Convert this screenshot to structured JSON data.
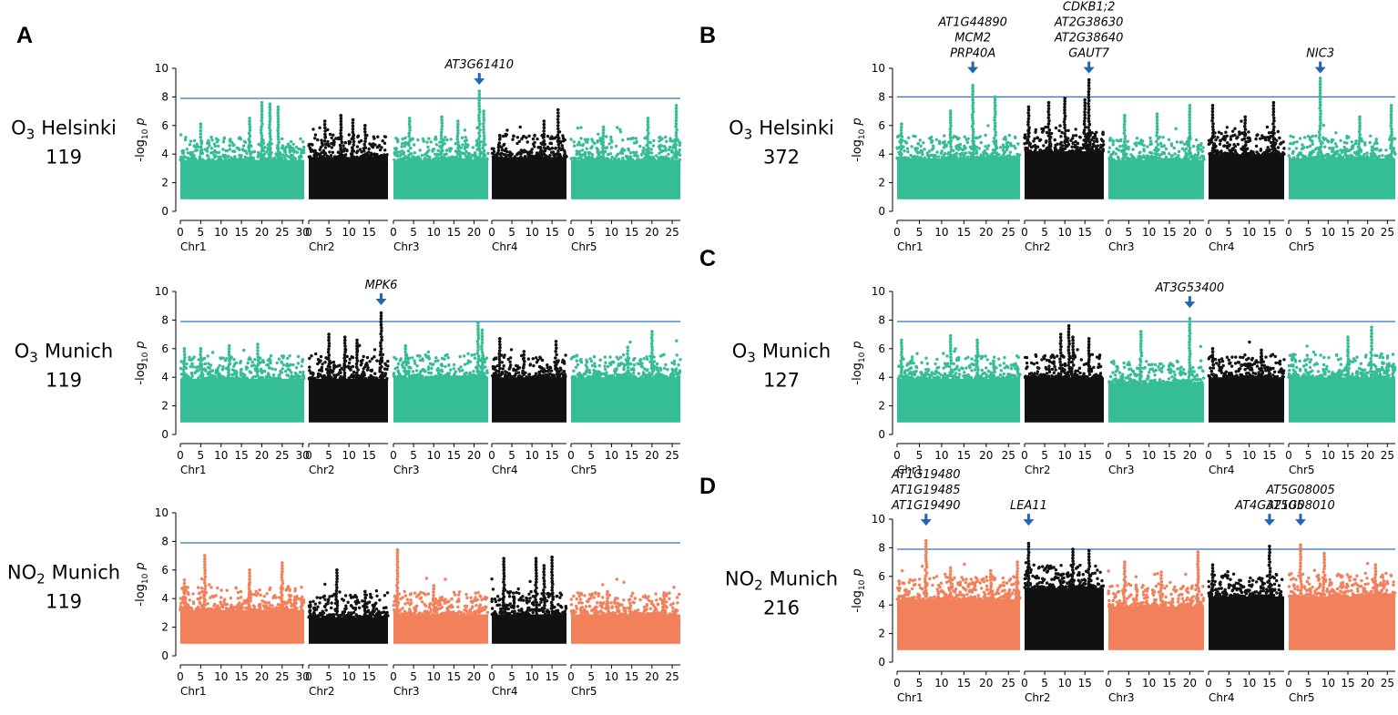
{
  "colors": {
    "teal": "#35bd95",
    "salmon": "#f2805b",
    "black": "#111111",
    "threshold": "#2e73c2",
    "arrow": "#2166b0"
  },
  "chart_data": [
    {
      "panel_letter": "A",
      "type": "scatter",
      "pollutant": "O",
      "pollutant_sub": "3",
      "site": "Helsinki",
      "n": "119",
      "ylabel": "-log",
      "ylabel_sub": "10",
      "ylabel_p": "p",
      "ylim": [
        0,
        10
      ],
      "yticks": [
        "0",
        "2",
        "4",
        "6",
        "8",
        "10"
      ],
      "threshold": 7.9,
      "palette": "teal",
      "chromosomes": [
        {
          "name": "Chr1",
          "length_mb": 30.4,
          "ticks": [
            "0",
            "5",
            "10",
            "15",
            "20",
            "25",
            "30"
          ],
          "base": 4.0,
          "peaks": [
            [
              5,
              6.1
            ],
            [
              17,
              6.5
            ],
            [
              20,
              7.6
            ],
            [
              22,
              7.5
            ],
            [
              24,
              7.3
            ]
          ]
        },
        {
          "name": "Chr2",
          "length_mb": 19.7,
          "ticks": [
            "0",
            "5",
            "10",
            "15"
          ],
          "base": 4.2,
          "peaks": [
            [
              4,
              6.3
            ],
            [
              8,
              6.7
            ],
            [
              11,
              6.4
            ],
            [
              14,
              6.0
            ]
          ]
        },
        {
          "name": "Chr3",
          "length_mb": 23.5,
          "ticks": [
            "0",
            "5",
            "10",
            "15",
            "20"
          ],
          "base": 4.0,
          "peaks": [
            [
              4,
              6.5
            ],
            [
              12,
              6.6
            ],
            [
              16,
              6.3
            ],
            [
              21.3,
              8.4
            ],
            [
              22.4,
              7.0
            ]
          ]
        },
        {
          "name": "Chr4",
          "length_mb": 18.6,
          "ticks": [
            "0",
            "5",
            "10",
            "15"
          ],
          "base": 4.2,
          "peaks": [
            [
              2,
              5.3
            ],
            [
              13,
              6.3
            ],
            [
              16.5,
              7.1
            ]
          ]
        },
        {
          "name": "Chr5",
          "length_mb": 27.0,
          "ticks": [
            "0",
            "5",
            "10",
            "15",
            "20",
            "25"
          ],
          "base": 4.0,
          "peaks": [
            [
              8,
              5.9
            ],
            [
              19,
              6.5
            ],
            [
              26,
              7.4
            ]
          ]
        }
      ],
      "annotations": [
        {
          "chr": "Chr3",
          "pos": 21.3,
          "labels": [
            "AT3G61410"
          ],
          "arrow_y": 9.1
        }
      ]
    },
    {
      "panel_letter": "",
      "type": "scatter",
      "pollutant": "O",
      "pollutant_sub": "3",
      "site": "Munich",
      "n": "119",
      "ylabel": "-log",
      "ylabel_sub": "10",
      "ylabel_p": "p",
      "ylim": [
        0,
        10
      ],
      "yticks": [
        "0",
        "2",
        "4",
        "6",
        "8",
        "10"
      ],
      "threshold": 7.9,
      "palette": "teal",
      "chromosomes": [
        {
          "name": "Chr1",
          "length_mb": 30.4,
          "ticks": [
            "0",
            "5",
            "10",
            "15",
            "20",
            "25",
            "30"
          ],
          "base": 4.3,
          "peaks": [
            [
              1,
              6.0
            ],
            [
              5,
              6.0
            ],
            [
              12,
              6.2
            ],
            [
              19,
              6.3
            ]
          ]
        },
        {
          "name": "Chr2",
          "length_mb": 19.7,
          "ticks": [
            "0",
            "5",
            "10",
            "15"
          ],
          "base": 4.3,
          "peaks": [
            [
              5,
              7.0
            ],
            [
              9,
              6.8
            ],
            [
              12,
              6.6
            ],
            [
              18,
              8.5
            ]
          ]
        },
        {
          "name": "Chr3",
          "length_mb": 23.5,
          "ticks": [
            "0",
            "5",
            "10",
            "15",
            "20"
          ],
          "base": 4.4,
          "peaks": [
            [
              3,
              6.2
            ],
            [
              21,
              7.8
            ],
            [
              22,
              7.3
            ]
          ]
        },
        {
          "name": "Chr4",
          "length_mb": 18.6,
          "ticks": [
            "0",
            "5",
            "10",
            "15"
          ],
          "base": 4.4,
          "peaks": [
            [
              2,
              6.7
            ],
            [
              8,
              5.8
            ],
            [
              16,
              6.5
            ]
          ]
        },
        {
          "name": "Chr5",
          "length_mb": 27.0,
          "ticks": [
            "0",
            "5",
            "10",
            "15",
            "20",
            "25"
          ],
          "base": 4.4,
          "peaks": [
            [
              14,
              6.1
            ],
            [
              20,
              7.2
            ]
          ]
        }
      ],
      "annotations": [
        {
          "chr": "Chr2",
          "pos": 18.0,
          "labels": [
            "MPK6"
          ],
          "arrow_y": 9.3
        }
      ]
    },
    {
      "panel_letter": "",
      "type": "scatter",
      "pollutant": "NO",
      "pollutant_sub": "2",
      "site": "Munich",
      "n": "119",
      "ylabel": "-log",
      "ylabel_sub": "10",
      "ylabel_p": "p",
      "ylim": [
        0,
        10
      ],
      "yticks": [
        "0",
        "2",
        "4",
        "6",
        "8",
        "10"
      ],
      "threshold": 7.9,
      "palette": "salmon",
      "chromosomes": [
        {
          "name": "Chr1",
          "length_mb": 30.4,
          "ticks": [
            "0",
            "5",
            "10",
            "15",
            "20",
            "25",
            "30"
          ],
          "base": 3.6,
          "peaks": [
            [
              1,
              5.3
            ],
            [
              6,
              7.0
            ],
            [
              17,
              6.0
            ],
            [
              25,
              6.5
            ]
          ]
        },
        {
          "name": "Chr2",
          "length_mb": 19.7,
          "ticks": [
            "0",
            "5",
            "10",
            "15"
          ],
          "base": 3.1,
          "peaks": [
            [
              7,
              6.0
            ],
            [
              14,
              4.5
            ]
          ]
        },
        {
          "name": "Chr3",
          "length_mb": 23.5,
          "ticks": [
            "0",
            "5",
            "10",
            "15",
            "20"
          ],
          "base": 3.3,
          "peaks": [
            [
              1,
              7.4
            ],
            [
              10,
              4.9
            ]
          ]
        },
        {
          "name": "Chr4",
          "length_mb": 18.6,
          "ticks": [
            "0",
            "5",
            "10",
            "15"
          ],
          "base": 3.3,
          "peaks": [
            [
              3,
              6.8
            ],
            [
              11,
              6.8
            ],
            [
              13,
              6.3
            ],
            [
              15,
              6.9
            ]
          ]
        },
        {
          "name": "Chr5",
          "length_mb": 27.0,
          "ticks": [
            "0",
            "5",
            "10",
            "15",
            "20",
            "25"
          ],
          "base": 3.3,
          "peaks": [
            [
              9,
              4.5
            ],
            [
              23,
              4.4
            ]
          ]
        }
      ],
      "annotations": []
    },
    {
      "panel_letter": "B",
      "type": "scatter",
      "pollutant": "O",
      "pollutant_sub": "3",
      "site": "Helsinki",
      "n": "372",
      "ylabel": "-log",
      "ylabel_sub": "10",
      "ylabel_p": "p",
      "ylim": [
        0,
        10
      ],
      "yticks": [
        "0",
        "2",
        "4",
        "6",
        "8",
        "10"
      ],
      "threshold": 8.0,
      "palette": "teal",
      "chromosomes": [
        {
          "name": "Chr1",
          "length_mb": 27.6,
          "ticks": [
            "0",
            "5",
            "10",
            "15",
            "20",
            "25"
          ],
          "base": 4.1,
          "peaks": [
            [
              1,
              6.1
            ],
            [
              17,
              8.8
            ],
            [
              22,
              8.0
            ],
            [
              12,
              7.0
            ]
          ]
        },
        {
          "name": "Chr2",
          "length_mb": 19.7,
          "ticks": [
            "0",
            "5",
            "10",
            "15"
          ],
          "base": 4.6,
          "peaks": [
            [
              1,
              7.3
            ],
            [
              6,
              7.6
            ],
            [
              10,
              7.9
            ],
            [
              16,
              9.2
            ],
            [
              15,
              7.8
            ]
          ]
        },
        {
          "name": "Chr3",
          "length_mb": 23.5,
          "ticks": [
            "0",
            "5",
            "10",
            "15",
            "20"
          ],
          "base": 4.0,
          "peaks": [
            [
              4,
              6.7
            ],
            [
              12,
              6.8
            ],
            [
              20,
              7.4
            ]
          ]
        },
        {
          "name": "Chr4",
          "length_mb": 18.6,
          "ticks": [
            "0",
            "5",
            "10",
            "15"
          ],
          "base": 4.4,
          "peaks": [
            [
              1,
              7.4
            ],
            [
              16,
              7.6
            ],
            [
              9,
              6.6
            ]
          ]
        },
        {
          "name": "Chr5",
          "length_mb": 27.0,
          "ticks": [
            "0",
            "5",
            "10",
            "15",
            "20",
            "25"
          ],
          "base": 4.1,
          "peaks": [
            [
              8,
              9.3
            ],
            [
              26,
              7.4
            ],
            [
              18,
              6.6
            ]
          ]
        }
      ],
      "annotations": [
        {
          "chr": "Chr1",
          "pos": 17,
          "labels": [
            "AT1G44890",
            "MCM2",
            "PRP40A"
          ],
          "arrow_y": 9.9
        },
        {
          "chr": "Chr2",
          "pos": 16,
          "labels": [
            "CDKB1;2",
            "AT2G38630",
            "AT2G38640",
            "GAUT7"
          ],
          "arrow_y": 9.9
        },
        {
          "chr": "Chr5",
          "pos": 8,
          "labels": [
            "NIC3"
          ],
          "arrow_y": 9.9
        }
      ]
    },
    {
      "panel_letter": "C",
      "type": "scatter",
      "pollutant": "O",
      "pollutant_sub": "3",
      "site": "Munich",
      "n": "127",
      "ylabel": "-log",
      "ylabel_sub": "10",
      "ylabel_p": "p",
      "ylim": [
        0,
        10
      ],
      "yticks": [
        "0",
        "2",
        "4",
        "6",
        "8",
        "10"
      ],
      "threshold": 7.9,
      "palette": "teal",
      "chromosomes": [
        {
          "name": "Chr1",
          "length_mb": 27.6,
          "ticks": [
            "0",
            "5",
            "10",
            "15",
            "20",
            "25"
          ],
          "base": 4.3,
          "peaks": [
            [
              1,
              6.6
            ],
            [
              12,
              6.9
            ],
            [
              18,
              6.6
            ]
          ]
        },
        {
          "name": "Chr2",
          "length_mb": 19.7,
          "ticks": [
            "0",
            "5",
            "10",
            "15"
          ],
          "base": 4.4,
          "peaks": [
            [
              9,
              7.0
            ],
            [
              11,
              7.6
            ],
            [
              12,
              6.8
            ],
            [
              16,
              6.7
            ]
          ]
        },
        {
          "name": "Chr3",
          "length_mb": 23.5,
          "ticks": [
            "0",
            "5",
            "10",
            "15",
            "20"
          ],
          "base": 4.0,
          "peaks": [
            [
              8,
              7.2
            ],
            [
              20,
              8.1
            ]
          ]
        },
        {
          "name": "Chr4",
          "length_mb": 18.6,
          "ticks": [
            "0",
            "5",
            "10",
            "15"
          ],
          "base": 4.4,
          "peaks": [
            [
              1,
              6.0
            ],
            [
              13,
              5.9
            ]
          ]
        },
        {
          "name": "Chr5",
          "length_mb": 27.0,
          "ticks": [
            "0",
            "5",
            "10",
            "15",
            "20",
            "25"
          ],
          "base": 4.4,
          "peaks": [
            [
              15,
              6.8
            ],
            [
              21,
              7.5
            ]
          ]
        }
      ],
      "annotations": [
        {
          "chr": "Chr3",
          "pos": 20,
          "labels": [
            "AT3G53400"
          ],
          "arrow_y": 9.1
        }
      ]
    },
    {
      "panel_letter": "D",
      "type": "scatter",
      "pollutant": "NO",
      "pollutant_sub": "2",
      "site": "Munich",
      "n": "216",
      "ylabel": "-log",
      "ylabel_sub": "10",
      "ylabel_p": "p",
      "ylim": [
        0,
        10
      ],
      "yticks": [
        "0",
        "2",
        "4",
        "6",
        "8",
        "10"
      ],
      "threshold": 7.9,
      "palette": "salmon",
      "chromosomes": [
        {
          "name": "Chr1",
          "length_mb": 27.6,
          "ticks": [
            "0",
            "5",
            "10",
            "15",
            "20",
            "25"
          ],
          "base": 4.8,
          "peaks": [
            [
              6.5,
              8.5
            ],
            [
              12,
              6.6
            ],
            [
              21,
              6.4
            ],
            [
              27,
              7.0
            ]
          ]
        },
        {
          "name": "Chr2",
          "length_mb": 19.7,
          "ticks": [
            "0",
            "5",
            "10",
            "15"
          ],
          "base": 5.6,
          "peaks": [
            [
              1,
              8.3
            ],
            [
              12,
              7.9
            ],
            [
              16,
              7.8
            ]
          ]
        },
        {
          "name": "Chr3",
          "length_mb": 23.5,
          "ticks": [
            "0",
            "5",
            "10",
            "15",
            "20"
          ],
          "base": 4.3,
          "peaks": [
            [
              4,
              7.0
            ],
            [
              13,
              6.3
            ],
            [
              22,
              7.7
            ]
          ]
        },
        {
          "name": "Chr4",
          "length_mb": 18.6,
          "ticks": [
            "0",
            "5",
            "10",
            "15"
          ],
          "base": 5.0,
          "peaks": [
            [
              1,
              6.8
            ],
            [
              15,
              8.1
            ]
          ]
        },
        {
          "name": "Chr5",
          "length_mb": 27.0,
          "ticks": [
            "0",
            "5",
            "10",
            "15",
            "20",
            "25"
          ],
          "base": 5.0,
          "peaks": [
            [
              3,
              8.2
            ],
            [
              9,
              7.6
            ],
            [
              22,
              6.8
            ]
          ]
        }
      ],
      "annotations": [
        {
          "chr": "Chr1",
          "pos": 6.5,
          "labels": [
            "AT1G19480",
            "AT1G19485",
            "AT1G19490"
          ],
          "arrow_y": 9.8
        },
        {
          "chr": "Chr2",
          "pos": 1,
          "labels": [
            "LEA11"
          ],
          "arrow_y": 9.8
        },
        {
          "chr": "Chr4",
          "pos": 15,
          "labels": [
            "AT4G32105"
          ],
          "arrow_y": 9.8
        },
        {
          "chr": "Chr5",
          "pos": 3,
          "labels": [
            "AT5G08005",
            "AT5G08010"
          ],
          "arrow_y": 9.8
        }
      ]
    }
  ]
}
